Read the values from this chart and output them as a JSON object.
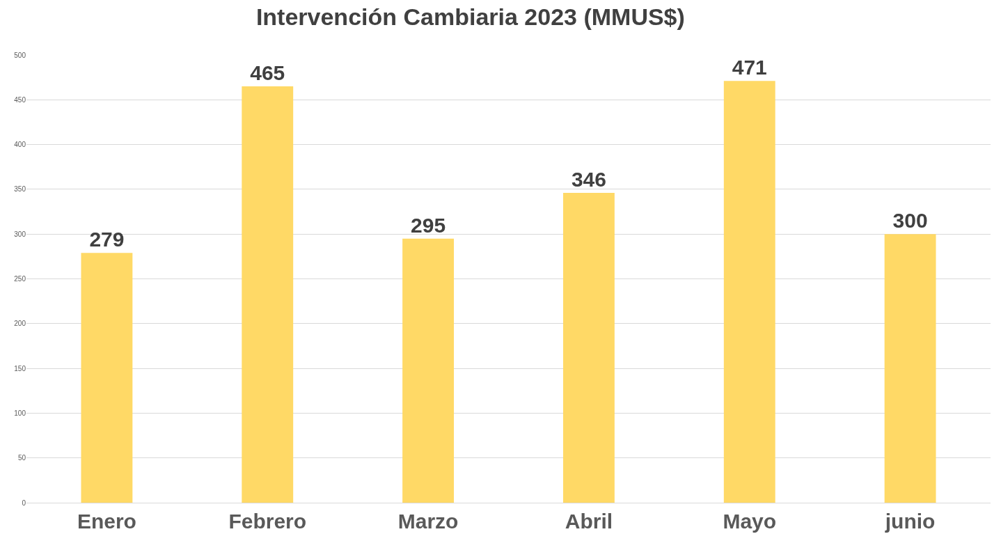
{
  "chart_data": {
    "type": "bar",
    "title": "Intervención Cambiaria 2023 (MMUS$)",
    "categories": [
      "Enero",
      "Febrero",
      "Marzo",
      "Abril",
      "Mayo",
      "junio"
    ],
    "values": [
      279,
      465,
      295,
      346,
      471,
      300
    ],
    "color": "#ffd966",
    "ylim": [
      0,
      500
    ],
    "yticks": [
      0,
      50,
      100,
      150,
      200,
      250,
      300,
      350,
      400,
      450,
      500
    ],
    "grid": "y",
    "data_labels": true
  }
}
